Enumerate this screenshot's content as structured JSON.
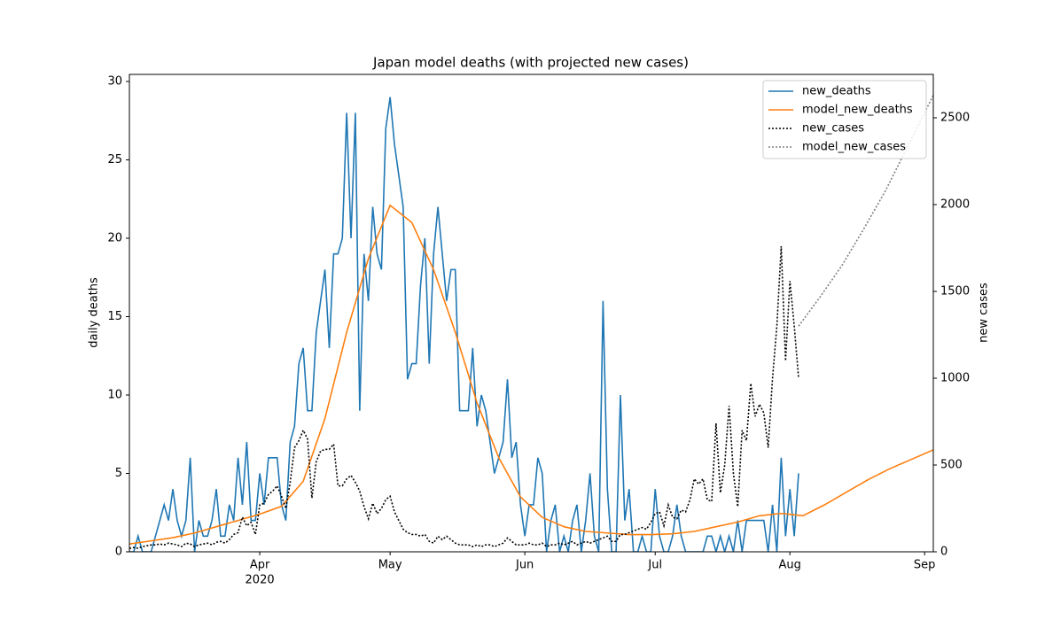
{
  "chart_data": {
    "type": "line",
    "title": "Japan model deaths (with projected new cases)",
    "ylabel": "daily deaths",
    "y2label": "new cases",
    "xlim": [
      62,
      247
    ],
    "xticks": [
      {
        "value": 92,
        "label": "Apr",
        "sublabel": "2020"
      },
      {
        "value": 122,
        "label": "May"
      },
      {
        "value": 153,
        "label": "Jun"
      },
      {
        "value": 183,
        "label": "Jul"
      },
      {
        "value": 214,
        "label": "Aug"
      },
      {
        "value": 245,
        "label": "Sep"
      }
    ],
    "ylim": [
      0,
      30.45
    ],
    "yticks": [
      0,
      5,
      10,
      15,
      20,
      25,
      30
    ],
    "y2lim": [
      0,
      2750
    ],
    "y2ticks": [
      0,
      500,
      1000,
      1500,
      2000,
      2500
    ],
    "legend": "upper right",
    "series": [
      {
        "name": "new_deaths",
        "color": "#1f77b4",
        "linestyle": "solid",
        "x": [
          62,
          63,
          64,
          65,
          66,
          67,
          68,
          69,
          70,
          71,
          72,
          73,
          74,
          75,
          76,
          77,
          78,
          79,
          80,
          81,
          82,
          83,
          84,
          85,
          86,
          87,
          88,
          89,
          90,
          91,
          92,
          93,
          94,
          95,
          96,
          97,
          98,
          99,
          100,
          101,
          102,
          103,
          104,
          105,
          106,
          107,
          108,
          109,
          110,
          111,
          112,
          113,
          114,
          115,
          116,
          117,
          118,
          119,
          120,
          121,
          122,
          123,
          124,
          125,
          126,
          127,
          128,
          129,
          130,
          131,
          132,
          133,
          134,
          135,
          136,
          137,
          138,
          139,
          140,
          141,
          142,
          143,
          144,
          145,
          146,
          147,
          148,
          149,
          150,
          151,
          152,
          153,
          154,
          155,
          156,
          157,
          158,
          159,
          160,
          161,
          162,
          163,
          164,
          165,
          166,
          167,
          168,
          169,
          170,
          171,
          172,
          173,
          174,
          175,
          176,
          177,
          178,
          179,
          180,
          181,
          182,
          183,
          184,
          185,
          186,
          187,
          188,
          189,
          190,
          191,
          192,
          193,
          194,
          195,
          196,
          197,
          198,
          199,
          200,
          201,
          202,
          203,
          204,
          205,
          206,
          207,
          208,
          209,
          210,
          211,
          212,
          213,
          214,
          215,
          216
        ],
        "values": [
          0,
          0,
          1,
          0,
          0,
          0,
          1,
          2,
          3,
          2,
          4,
          2,
          1,
          2,
          6,
          0,
          2,
          1,
          1,
          2,
          4,
          1,
          1,
          3,
          2,
          6,
          3,
          7,
          2,
          2,
          5,
          3,
          6,
          6,
          6,
          3,
          2,
          7,
          8,
          12,
          13,
          9,
          9,
          14,
          16,
          18,
          13,
          19,
          19,
          20,
          28,
          20,
          28,
          9,
          19,
          16,
          22,
          19,
          18,
          27,
          29,
          26,
          24,
          22,
          11,
          12,
          12,
          17,
          20,
          12,
          19,
          22,
          19,
          16,
          18,
          18,
          9,
          9,
          9,
          13,
          8,
          10,
          9,
          7,
          5,
          6,
          7,
          11,
          6,
          7,
          3,
          1,
          3,
          3,
          6,
          5,
          0,
          2,
          3,
          0,
          1,
          0,
          2,
          3,
          0,
          2,
          5,
          1,
          0,
          16,
          4,
          0,
          0,
          10,
          2,
          4,
          0,
          0,
          1,
          0,
          0,
          4,
          1,
          0,
          0,
          1,
          3,
          1,
          0,
          0,
          0,
          0,
          0,
          1,
          1,
          0,
          1,
          0,
          1,
          0,
          2,
          0,
          2,
          2,
          2,
          2,
          2,
          0,
          3,
          0,
          6,
          1,
          4,
          1,
          5
        ]
      },
      {
        "name": "model_new_deaths",
        "color": "#ff7f0e",
        "linestyle": "solid",
        "x": [
          62,
          67,
          72,
          77,
          82,
          87,
          92,
          97,
          102,
          107,
          112,
          117,
          122,
          127,
          132,
          137,
          142,
          147,
          152,
          157,
          162,
          167,
          172,
          177,
          182,
          187,
          192,
          197,
          202,
          207,
          212,
          217,
          222,
          227,
          232,
          237,
          242,
          247
        ],
        "values": [
          0.5,
          0.7,
          0.9,
          1.2,
          1.6,
          2.0,
          2.4,
          2.9,
          4.5,
          8.5,
          14,
          18.7,
          22.1,
          21,
          18,
          14,
          9.5,
          6,
          3.5,
          2.2,
          1.6,
          1.3,
          1.2,
          1.1,
          1.1,
          1.15,
          1.3,
          1.6,
          1.9,
          2.3,
          2.45,
          2.3,
          3.0,
          3.8,
          4.6,
          5.3,
          5.9,
          6.5
        ]
      },
      {
        "name": "new_cases",
        "color": "#000000",
        "linestyle": "dotted",
        "axis": "y2",
        "x": [
          62,
          63,
          64,
          65,
          66,
          67,
          68,
          69,
          70,
          71,
          72,
          73,
          74,
          75,
          76,
          77,
          78,
          79,
          80,
          81,
          82,
          83,
          84,
          85,
          86,
          87,
          88,
          89,
          90,
          91,
          92,
          93,
          94,
          95,
          96,
          97,
          98,
          99,
          100,
          101,
          102,
          103,
          104,
          105,
          106,
          107,
          108,
          109,
          110,
          111,
          112,
          113,
          114,
          115,
          116,
          117,
          118,
          119,
          120,
          121,
          122,
          123,
          124,
          125,
          126,
          127,
          128,
          129,
          130,
          131,
          132,
          133,
          134,
          135,
          136,
          137,
          138,
          139,
          140,
          141,
          142,
          143,
          144,
          145,
          146,
          147,
          148,
          149,
          150,
          151,
          152,
          153,
          154,
          155,
          156,
          157,
          158,
          159,
          160,
          161,
          162,
          163,
          164,
          165,
          166,
          167,
          168,
          169,
          170,
          171,
          172,
          173,
          174,
          175,
          176,
          177,
          178,
          179,
          180,
          181,
          182,
          183,
          184,
          185,
          186,
          187,
          188,
          189,
          190,
          191,
          192,
          193,
          194,
          195,
          196,
          197,
          198,
          199,
          200,
          201,
          202,
          203,
          204,
          205,
          206,
          207,
          208,
          209,
          210,
          211,
          212,
          213,
          214,
          215,
          216
        ],
        "values": [
          20,
          25,
          20,
          30,
          35,
          40,
          40,
          45,
          40,
          50,
          45,
          40,
          30,
          50,
          45,
          30,
          40,
          45,
          50,
          40,
          55,
          60,
          50,
          70,
          100,
          110,
          200,
          150,
          170,
          100,
          270,
          280,
          330,
          350,
          380,
          320,
          250,
          400,
          600,
          640,
          700,
          650,
          310,
          520,
          580,
          590,
          590,
          620,
          380,
          380,
          420,
          440,
          400,
          350,
          260,
          190,
          280,
          220,
          250,
          300,
          320,
          230,
          180,
          130,
          110,
          100,
          100,
          90,
          100,
          60,
          50,
          90,
          70,
          90,
          70,
          50,
          40,
          40,
          40,
          30,
          40,
          30,
          40,
          40,
          30,
          40,
          50,
          80,
          60,
          40,
          40,
          40,
          50,
          40,
          40,
          50,
          30,
          40,
          40,
          50,
          40,
          50,
          60,
          40,
          50,
          60,
          50,
          60,
          70,
          80,
          90,
          60,
          60,
          100,
          100,
          110,
          120,
          130,
          140,
          130,
          170,
          220,
          230,
          150,
          270,
          200,
          190,
          240,
          230,
          300,
          420,
          390,
          420,
          300,
          290,
          740,
          340,
          500,
          840,
          450,
          260,
          700,
          640,
          970,
          780,
          850,
          800,
          600,
          1000,
          1300,
          1760,
          1100,
          1560,
          1300,
          1000
        ]
      },
      {
        "name": "model_new_cases",
        "color": "#808080",
        "linestyle": "dotted",
        "axis": "y2",
        "x": [
          216,
          221,
          226,
          231,
          236,
          241,
          247
        ],
        "values": [
          1300,
          1470,
          1650,
          1860,
          2080,
          2330,
          2630
        ]
      }
    ]
  }
}
